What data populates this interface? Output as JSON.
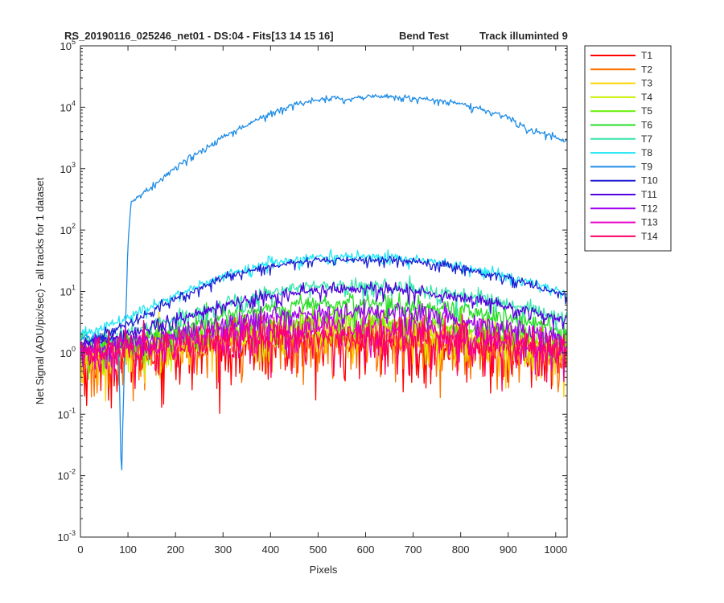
{
  "chart_data": {
    "type": "line",
    "title_parts": [
      "RS_20190116_025246_net01 - DS:04 - Fits[13  14  15  16]",
      "Bend Test",
      "Track illuminted 9"
    ],
    "xlabel": "Pixels",
    "ylabel": "Net Signal (ADU/pix/sec) - all tracks for 1 dataset",
    "xlim": [
      0,
      1024
    ],
    "ylim": [
      0.001,
      100000
    ],
    "yscale": "log",
    "grid": false,
    "legend_position": "outside-right",
    "x_ticks": [
      "0",
      "100",
      "200",
      "300",
      "400",
      "500",
      "600",
      "700",
      "800",
      "900",
      "1000"
    ],
    "y_ticks": [
      {
        "base": "10",
        "exp": "-3"
      },
      {
        "base": "10",
        "exp": "-2"
      },
      {
        "base": "10",
        "exp": "-1"
      },
      {
        "base": "10",
        "exp": "0"
      },
      {
        "base": "10",
        "exp": "1"
      },
      {
        "base": "10",
        "exp": "2"
      },
      {
        "base": "10",
        "exp": "3"
      },
      {
        "base": "10",
        "exp": "4"
      },
      {
        "base": "10",
        "exp": "5"
      }
    ],
    "series": [
      {
        "name": "T1",
        "color": "#ff0000",
        "noise": 0.55,
        "points": [
          [
            0,
            0.6
          ],
          [
            100,
            0.85
          ],
          [
            200,
            1.05
          ],
          [
            300,
            1.25
          ],
          [
            400,
            1.4
          ],
          [
            500,
            1.5
          ],
          [
            600,
            1.5
          ],
          [
            700,
            1.4
          ],
          [
            800,
            1.25
          ],
          [
            900,
            1.05
          ],
          [
            1024,
            0.75
          ]
        ]
      },
      {
        "name": "T2",
        "color": "#ff7300",
        "noise": 0.5,
        "points": [
          [
            0,
            0.65
          ],
          [
            100,
            0.9
          ],
          [
            200,
            1.1
          ],
          [
            300,
            1.3
          ],
          [
            400,
            1.45
          ],
          [
            500,
            1.55
          ],
          [
            600,
            1.55
          ],
          [
            700,
            1.45
          ],
          [
            800,
            1.3
          ],
          [
            900,
            1.1
          ],
          [
            1024,
            0.8
          ]
        ]
      },
      {
        "name": "T3",
        "color": "#ffd200",
        "noise": 0.4,
        "points": [
          [
            0,
            0.7
          ],
          [
            100,
            0.95
          ],
          [
            200,
            1.2
          ],
          [
            300,
            1.5
          ],
          [
            400,
            1.75
          ],
          [
            500,
            1.95
          ],
          [
            600,
            1.95
          ],
          [
            700,
            1.8
          ],
          [
            800,
            1.55
          ],
          [
            900,
            1.25
          ],
          [
            1024,
            0.9
          ]
        ]
      },
      {
        "name": "T4",
        "color": "#c8f000",
        "noise": 0.35,
        "points": [
          [
            0,
            0.8
          ],
          [
            100,
            1.0
          ],
          [
            200,
            1.35
          ],
          [
            300,
            1.75
          ],
          [
            400,
            2.2
          ],
          [
            500,
            2.5
          ],
          [
            600,
            2.5
          ],
          [
            700,
            2.3
          ],
          [
            800,
            1.9
          ],
          [
            900,
            1.5
          ],
          [
            1024,
            1.05
          ]
        ]
      },
      {
        "name": "T5",
        "color": "#64f000",
        "noise": 0.3,
        "points": [
          [
            0,
            1.05
          ],
          [
            100,
            1.3
          ],
          [
            200,
            1.8
          ],
          [
            300,
            2.4
          ],
          [
            400,
            3.0
          ],
          [
            500,
            3.4
          ],
          [
            600,
            3.4
          ],
          [
            700,
            3.1
          ],
          [
            800,
            2.6
          ],
          [
            900,
            2.05
          ],
          [
            1024,
            1.4
          ]
        ]
      },
      {
        "name": "T6",
        "color": "#28dc28",
        "noise": 0.22,
        "points": [
          [
            0,
            1.2
          ],
          [
            100,
            1.6
          ],
          [
            200,
            2.5
          ],
          [
            300,
            3.8
          ],
          [
            400,
            5.2
          ],
          [
            500,
            6.3
          ],
          [
            600,
            6.4
          ],
          [
            700,
            5.9
          ],
          [
            800,
            4.9
          ],
          [
            900,
            3.7
          ],
          [
            1024,
            2.3
          ]
        ]
      },
      {
        "name": "T7",
        "color": "#32e6aa",
        "noise": 0.18,
        "points": [
          [
            0,
            1.6
          ],
          [
            100,
            2.0
          ],
          [
            200,
            3.6
          ],
          [
            300,
            6.4
          ],
          [
            400,
            9.4
          ],
          [
            500,
            12.0
          ],
          [
            600,
            12.3
          ],
          [
            700,
            11.0
          ],
          [
            800,
            8.8
          ],
          [
            900,
            6.3
          ],
          [
            1024,
            3.6
          ]
        ]
      },
      {
        "name": "T8",
        "color": "#1ee6f5",
        "noise": 0.12,
        "points": [
          [
            0,
            2.0
          ],
          [
            100,
            3.6
          ],
          [
            200,
            8.5
          ],
          [
            300,
            18.0
          ],
          [
            400,
            29.0
          ],
          [
            500,
            36.0
          ],
          [
            600,
            36.5
          ],
          [
            700,
            33.0
          ],
          [
            800,
            26.0
          ],
          [
            900,
            18.0
          ],
          [
            1024,
            9.0
          ]
        ]
      },
      {
        "name": "T9",
        "color": "#1e8ce6",
        "noise": 0.06,
        "points": [
          [
            0,
            1.8
          ],
          [
            80,
            1.6
          ],
          [
            84,
            0.07
          ],
          [
            86,
            0.005
          ],
          [
            88,
            0.03
          ],
          [
            92,
            0.5
          ],
          [
            96,
            6
          ],
          [
            100,
            60
          ],
          [
            106,
            260
          ],
          [
            115,
            310
          ],
          [
            150,
            500
          ],
          [
            200,
            1050
          ],
          [
            300,
            3300
          ],
          [
            400,
            8000
          ],
          [
            450,
            11000
          ],
          [
            500,
            13500
          ],
          [
            540,
            14500
          ],
          [
            555,
            13000
          ],
          [
            575,
            14300
          ],
          [
            620,
            15000
          ],
          [
            700,
            14200
          ],
          [
            800,
            11500
          ],
          [
            900,
            7000
          ],
          [
            940,
            4400
          ],
          [
            1000,
            3300
          ],
          [
            1024,
            2700
          ]
        ]
      },
      {
        "name": "T10",
        "color": "#1e1ed2",
        "noise": 0.1,
        "points": [
          [
            0,
            1.4
          ],
          [
            100,
            3.0
          ],
          [
            200,
            7.5
          ],
          [
            300,
            16.5
          ],
          [
            400,
            26.0
          ],
          [
            500,
            32.0
          ],
          [
            600,
            33.0
          ],
          [
            700,
            30.0
          ],
          [
            800,
            24.0
          ],
          [
            900,
            16.5
          ],
          [
            1024,
            8.5
          ]
        ]
      },
      {
        "name": "T11",
        "color": "#5000dc",
        "noise": 0.15,
        "points": [
          [
            0,
            1.3
          ],
          [
            100,
            2.0
          ],
          [
            200,
            3.4
          ],
          [
            300,
            6.0
          ],
          [
            400,
            8.5
          ],
          [
            500,
            10.5
          ],
          [
            600,
            10.8
          ],
          [
            700,
            9.8
          ],
          [
            800,
            7.8
          ],
          [
            900,
            5.6
          ],
          [
            1024,
            3.3
          ]
        ]
      },
      {
        "name": "T12",
        "color": "#a000f0",
        "noise": 0.25,
        "points": [
          [
            0,
            1.1
          ],
          [
            100,
            1.4
          ],
          [
            200,
            2.0
          ],
          [
            300,
            2.9
          ],
          [
            400,
            3.8
          ],
          [
            500,
            4.5
          ],
          [
            600,
            4.6
          ],
          [
            700,
            4.2
          ],
          [
            800,
            3.4
          ],
          [
            900,
            2.5
          ],
          [
            1024,
            1.6
          ]
        ]
      },
      {
        "name": "T13",
        "color": "#e600c8",
        "noise": 0.35,
        "points": [
          [
            0,
            0.95
          ],
          [
            100,
            1.15
          ],
          [
            200,
            1.45
          ],
          [
            300,
            1.8
          ],
          [
            400,
            2.15
          ],
          [
            500,
            2.4
          ],
          [
            600,
            2.4
          ],
          [
            700,
            2.2
          ],
          [
            800,
            1.9
          ],
          [
            900,
            1.5
          ],
          [
            1024,
            1.1
          ]
        ]
      },
      {
        "name": "T14",
        "color": "#ff0064",
        "noise": 0.45,
        "points": [
          [
            0,
            0.9
          ],
          [
            100,
            1.05
          ],
          [
            200,
            1.25
          ],
          [
            300,
            1.45
          ],
          [
            400,
            1.6
          ],
          [
            500,
            1.75
          ],
          [
            600,
            1.75
          ],
          [
            700,
            1.6
          ],
          [
            800,
            1.45
          ],
          [
            900,
            1.25
          ],
          [
            1024,
            0.95
          ]
        ]
      }
    ]
  }
}
